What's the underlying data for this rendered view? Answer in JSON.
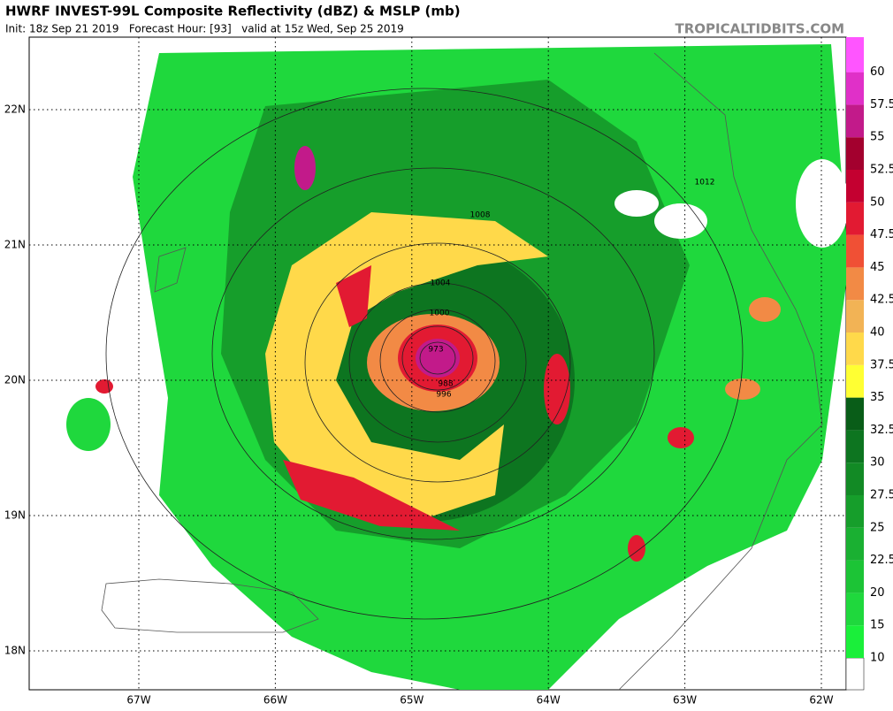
{
  "header": {
    "title": "HWRF INVEST-99L Composite Reflectivity (dBZ) & MSLP (mb)",
    "subtitle": "Init: 18z Sep 21 2019   Forecast Hour: [93]   valid at 15z Wed, Sep 25 2019",
    "watermark": "TROPICALTIDBITS.COM"
  },
  "map": {
    "lat_labels": [
      "22N",
      "21N",
      "20N",
      "19N",
      "18N"
    ],
    "lon_labels": [
      "67W",
      "66W",
      "65W",
      "64W",
      "63W",
      "62W"
    ],
    "isobar_labels": [
      "973",
      "988",
      "996",
      "1000",
      "1004",
      "1008",
      "1012"
    ]
  },
  "colorbar": {
    "labels": [
      "10",
      "15",
      "20",
      "22.5",
      "25",
      "27.5",
      "30",
      "32.5",
      "35",
      "37.5",
      "40",
      "42.5",
      "45",
      "47.5",
      "50",
      "52.5",
      "55",
      "57.5",
      "60"
    ],
    "colors": [
      "#1aef3a",
      "#1fd83d",
      "#1cc436",
      "#1ab032",
      "#169e2b",
      "#128a25",
      "#0d7520",
      "#095d18",
      "#ffff33",
      "#ffd94a",
      "#f2b355",
      "#f28a45",
      "#f05035",
      "#e21a32",
      "#c40030",
      "#a3002e",
      "#c21a8a",
      "#e030c8",
      "#ff55ff"
    ]
  }
}
